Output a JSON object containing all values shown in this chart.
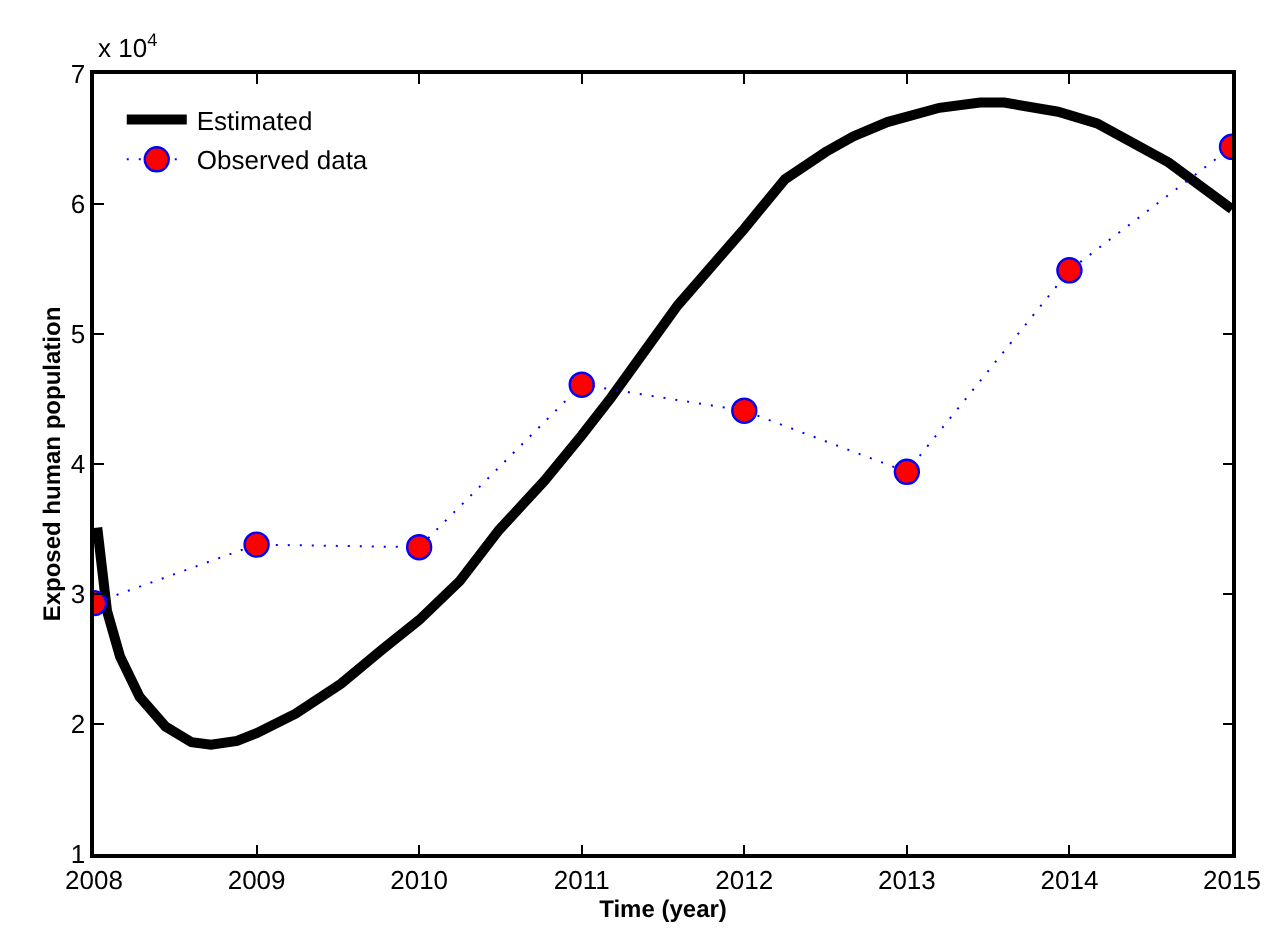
{
  "chart_data": {
    "type": "line",
    "xlabel": "Time (year)",
    "ylabel": "Exposed human population",
    "annotations": [
      "x 10$^{4}$"
    ],
    "xlim": [
      2008,
      2015
    ],
    "xticks": [
      2008,
      2009,
      2010,
      2011,
      2012,
      2013,
      2014,
      2015
    ],
    "ylim": [
      1,
      7
    ],
    "yticks": [
      1,
      2,
      3,
      4,
      5,
      6,
      7
    ],
    "grid": false,
    "legend": "top left",
    "series": [
      {
        "name": "Estimated",
        "color": "#000000",
        "line_style": "solid",
        "marker": "none",
        "x": [
          2008.02,
          2008.08,
          2008.16,
          2008.28,
          2008.44,
          2008.6,
          2008.72,
          2008.88,
          2009.0,
          2009.24,
          2009.52,
          2009.77,
          2010,
          2010.25,
          2010.49,
          2010.77,
          2011.0,
          2011.18,
          2011.59,
          2012,
          2012.25,
          2012.5,
          2012.67,
          2012.88,
          2013.2,
          2013.45,
          2013.6,
          2013.93,
          2014.17,
          2014.61,
          2015
        ],
        "values": [
          3.51,
          2.87,
          2.52,
          2.21,
          1.98,
          1.86,
          1.84,
          1.87,
          1.93,
          2.08,
          2.31,
          2.57,
          2.8,
          3.1,
          3.49,
          3.87,
          4.22,
          4.51,
          5.22,
          5.81,
          6.19,
          6.4,
          6.52,
          6.63,
          6.74,
          6.78,
          6.78,
          6.71,
          6.62,
          6.32,
          5.96
        ]
      },
      {
        "name": "Observed data",
        "color": "#0000ff",
        "line_style": "dotted",
        "marker": "circle",
        "x": [
          2008,
          2009,
          2010,
          2011,
          2012,
          2013,
          2014,
          2015
        ],
        "values": [
          2.93,
          3.38,
          3.36,
          4.61,
          4.41,
          3.94,
          5.49,
          6.44
        ]
      }
    ]
  }
}
